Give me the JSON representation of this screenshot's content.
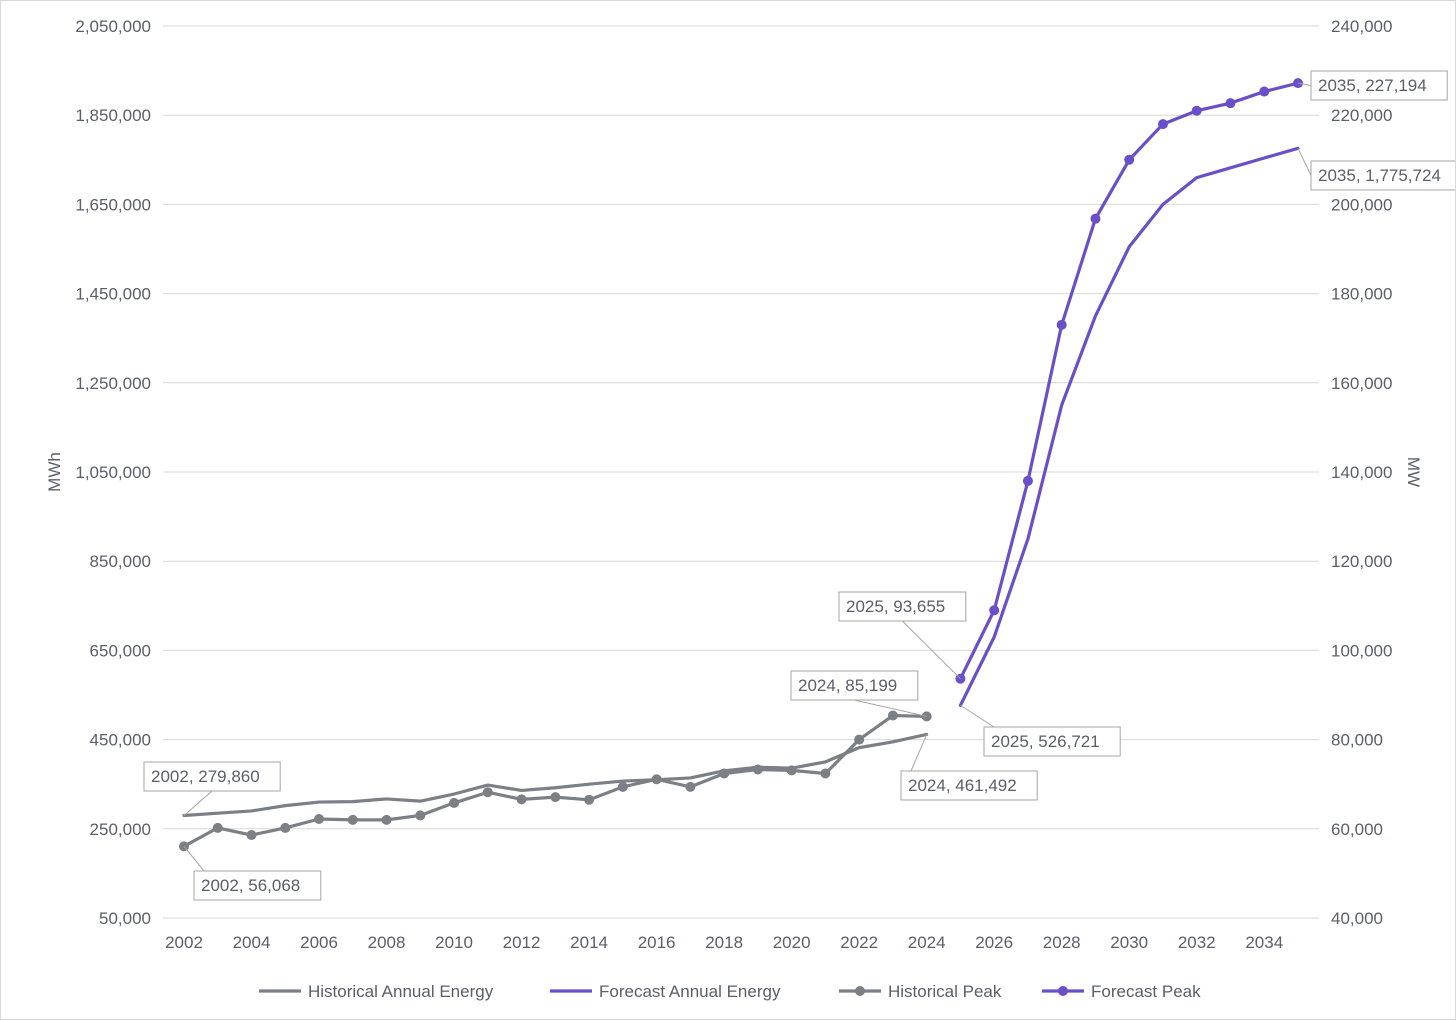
{
  "chart_data": {
    "type": "line",
    "title": "",
    "ylabel": "MWh",
    "y2label": "MW",
    "ylim": [
      50000,
      2050000
    ],
    "y2lim": [
      40000,
      240000
    ],
    "xlim": [
      2002,
      2035
    ],
    "yticks": [
      "50,000",
      "250,000",
      "450,000",
      "650,000",
      "850,000",
      "1,050,000",
      "1,250,000",
      "1,450,000",
      "1,650,000",
      "1,850,000",
      "2,050,000"
    ],
    "y2ticks": [
      "40,000",
      "60,000",
      "80,000",
      "100,000",
      "120,000",
      "140,000",
      "160,000",
      "180,000",
      "200,000",
      "220,000",
      "240,000"
    ],
    "xticks": [
      "2002",
      "2004",
      "2006",
      "2008",
      "2010",
      "2012",
      "2014",
      "2016",
      "2018",
      "2020",
      "2022",
      "2024",
      "2026",
      "2028",
      "2030",
      "2032",
      "2034"
    ],
    "grid": true,
    "legend_position": "bottom",
    "colors": {
      "historical": "#7b8087",
      "forecast": "#6a4fc8"
    },
    "series": [
      {
        "name": "Historical Annual Energy",
        "axis": "left",
        "markers": false,
        "color": "#7b8087",
        "x": [
          2002,
          2003,
          2004,
          2005,
          2006,
          2007,
          2008,
          2009,
          2010,
          2011,
          2012,
          2013,
          2014,
          2015,
          2016,
          2017,
          2018,
          2019,
          2020,
          2021,
          2022,
          2023,
          2024
        ],
        "values": [
          279860,
          285000,
          290000,
          302000,
          310000,
          311000,
          317000,
          312000,
          328000,
          348000,
          336000,
          342000,
          350000,
          357000,
          360000,
          364000,
          380000,
          388000,
          386000,
          400000,
          432000,
          445000,
          461492
        ]
      },
      {
        "name": "Forecast Annual Energy",
        "axis": "left",
        "markers": false,
        "color": "#6a4fc8",
        "x": [
          2025,
          2026,
          2027,
          2028,
          2029,
          2030,
          2031,
          2032,
          2033,
          2034,
          2035
        ],
        "values": [
          526721,
          680000,
          900000,
          1200000,
          1400000,
          1555000,
          1650000,
          1710000,
          1732000,
          1754000,
          1775724
        ]
      },
      {
        "name": "Historical Peak",
        "axis": "right",
        "markers": true,
        "color": "#7b8087",
        "x": [
          2002,
          2003,
          2004,
          2005,
          2006,
          2007,
          2008,
          2009,
          2010,
          2011,
          2012,
          2013,
          2014,
          2015,
          2016,
          2017,
          2018,
          2019,
          2020,
          2021,
          2022,
          2023,
          2024
        ],
        "values": [
          56068,
          60200,
          58600,
          60200,
          62200,
          62000,
          62000,
          63000,
          65800,
          68200,
          66600,
          67100,
          66500,
          69400,
          71100,
          69400,
          72400,
          73300,
          73100,
          72400,
          80000,
          85400,
          85199
        ]
      },
      {
        "name": "Forecast Peak",
        "axis": "right",
        "markers": true,
        "color": "#6a4fc8",
        "x": [
          2025,
          2026,
          2027,
          2028,
          2029,
          2030,
          2031,
          2032,
          2033,
          2034,
          2035
        ],
        "values": [
          93655,
          109000,
          138000,
          173000,
          196800,
          210000,
          218000,
          221000,
          222700,
          225300,
          227194
        ]
      }
    ],
    "annotations": [
      {
        "text": "2002, 279,860",
        "series": "Historical Annual Energy",
        "x": 2002
      },
      {
        "text": "2002, 56,068",
        "series": "Historical Peak",
        "x": 2002
      },
      {
        "text": "2024, 85,199",
        "series": "Historical Peak",
        "x": 2024
      },
      {
        "text": "2024, 461,492",
        "series": "Historical Annual Energy",
        "x": 2024
      },
      {
        "text": "2025, 93,655",
        "series": "Forecast Peak",
        "x": 2025
      },
      {
        "text": "2025, 526,721",
        "series": "Forecast Annual Energy",
        "x": 2025
      },
      {
        "text": "2035, 227,194",
        "series": "Forecast Peak",
        "x": 2035
      },
      {
        "text": "2035, 1,775,724",
        "series": "Forecast Annual Energy",
        "x": 2035
      }
    ]
  }
}
